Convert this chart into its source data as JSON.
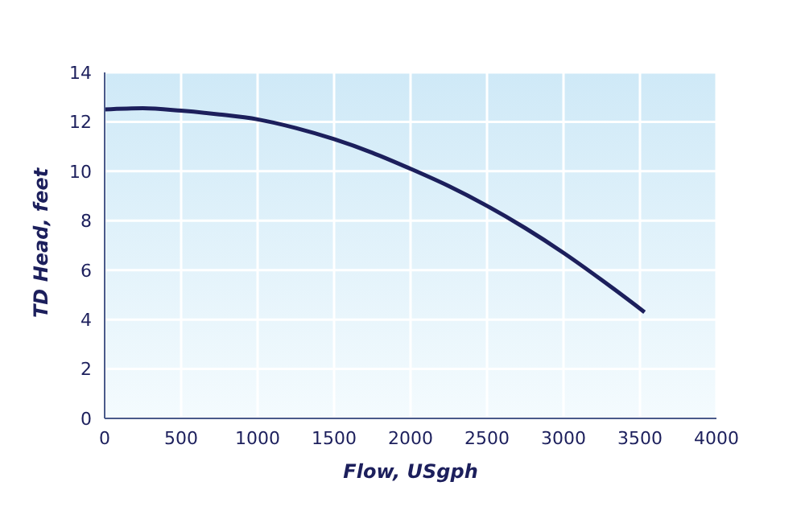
{
  "chart_data": {
    "type": "line",
    "xlabel": "Flow, USgph",
    "ylabel": "TD Head, feet",
    "x": [
      0,
      250,
      500,
      750,
      1000,
      1250,
      1500,
      1750,
      2000,
      2250,
      2500,
      2750,
      3000,
      3250,
      3530
    ],
    "series": [
      {
        "color": "#1c1f5c",
        "values": [
          12.5,
          12.55,
          12.45,
          12.3,
          12.1,
          11.75,
          11.3,
          10.75,
          10.1,
          9.4,
          8.6,
          7.7,
          6.7,
          5.6,
          4.3
        ]
      }
    ],
    "xlim": [
      0,
      4000
    ],
    "xticks": [
      0,
      500,
      1000,
      1500,
      2000,
      2500,
      3000,
      3500,
      4000
    ],
    "ylim": [
      0,
      14
    ],
    "yticks": [
      0,
      2,
      4,
      6,
      8,
      10,
      12,
      14
    ],
    "grid": true,
    "marker": "none",
    "line_style": "solid",
    "legend": false
  }
}
